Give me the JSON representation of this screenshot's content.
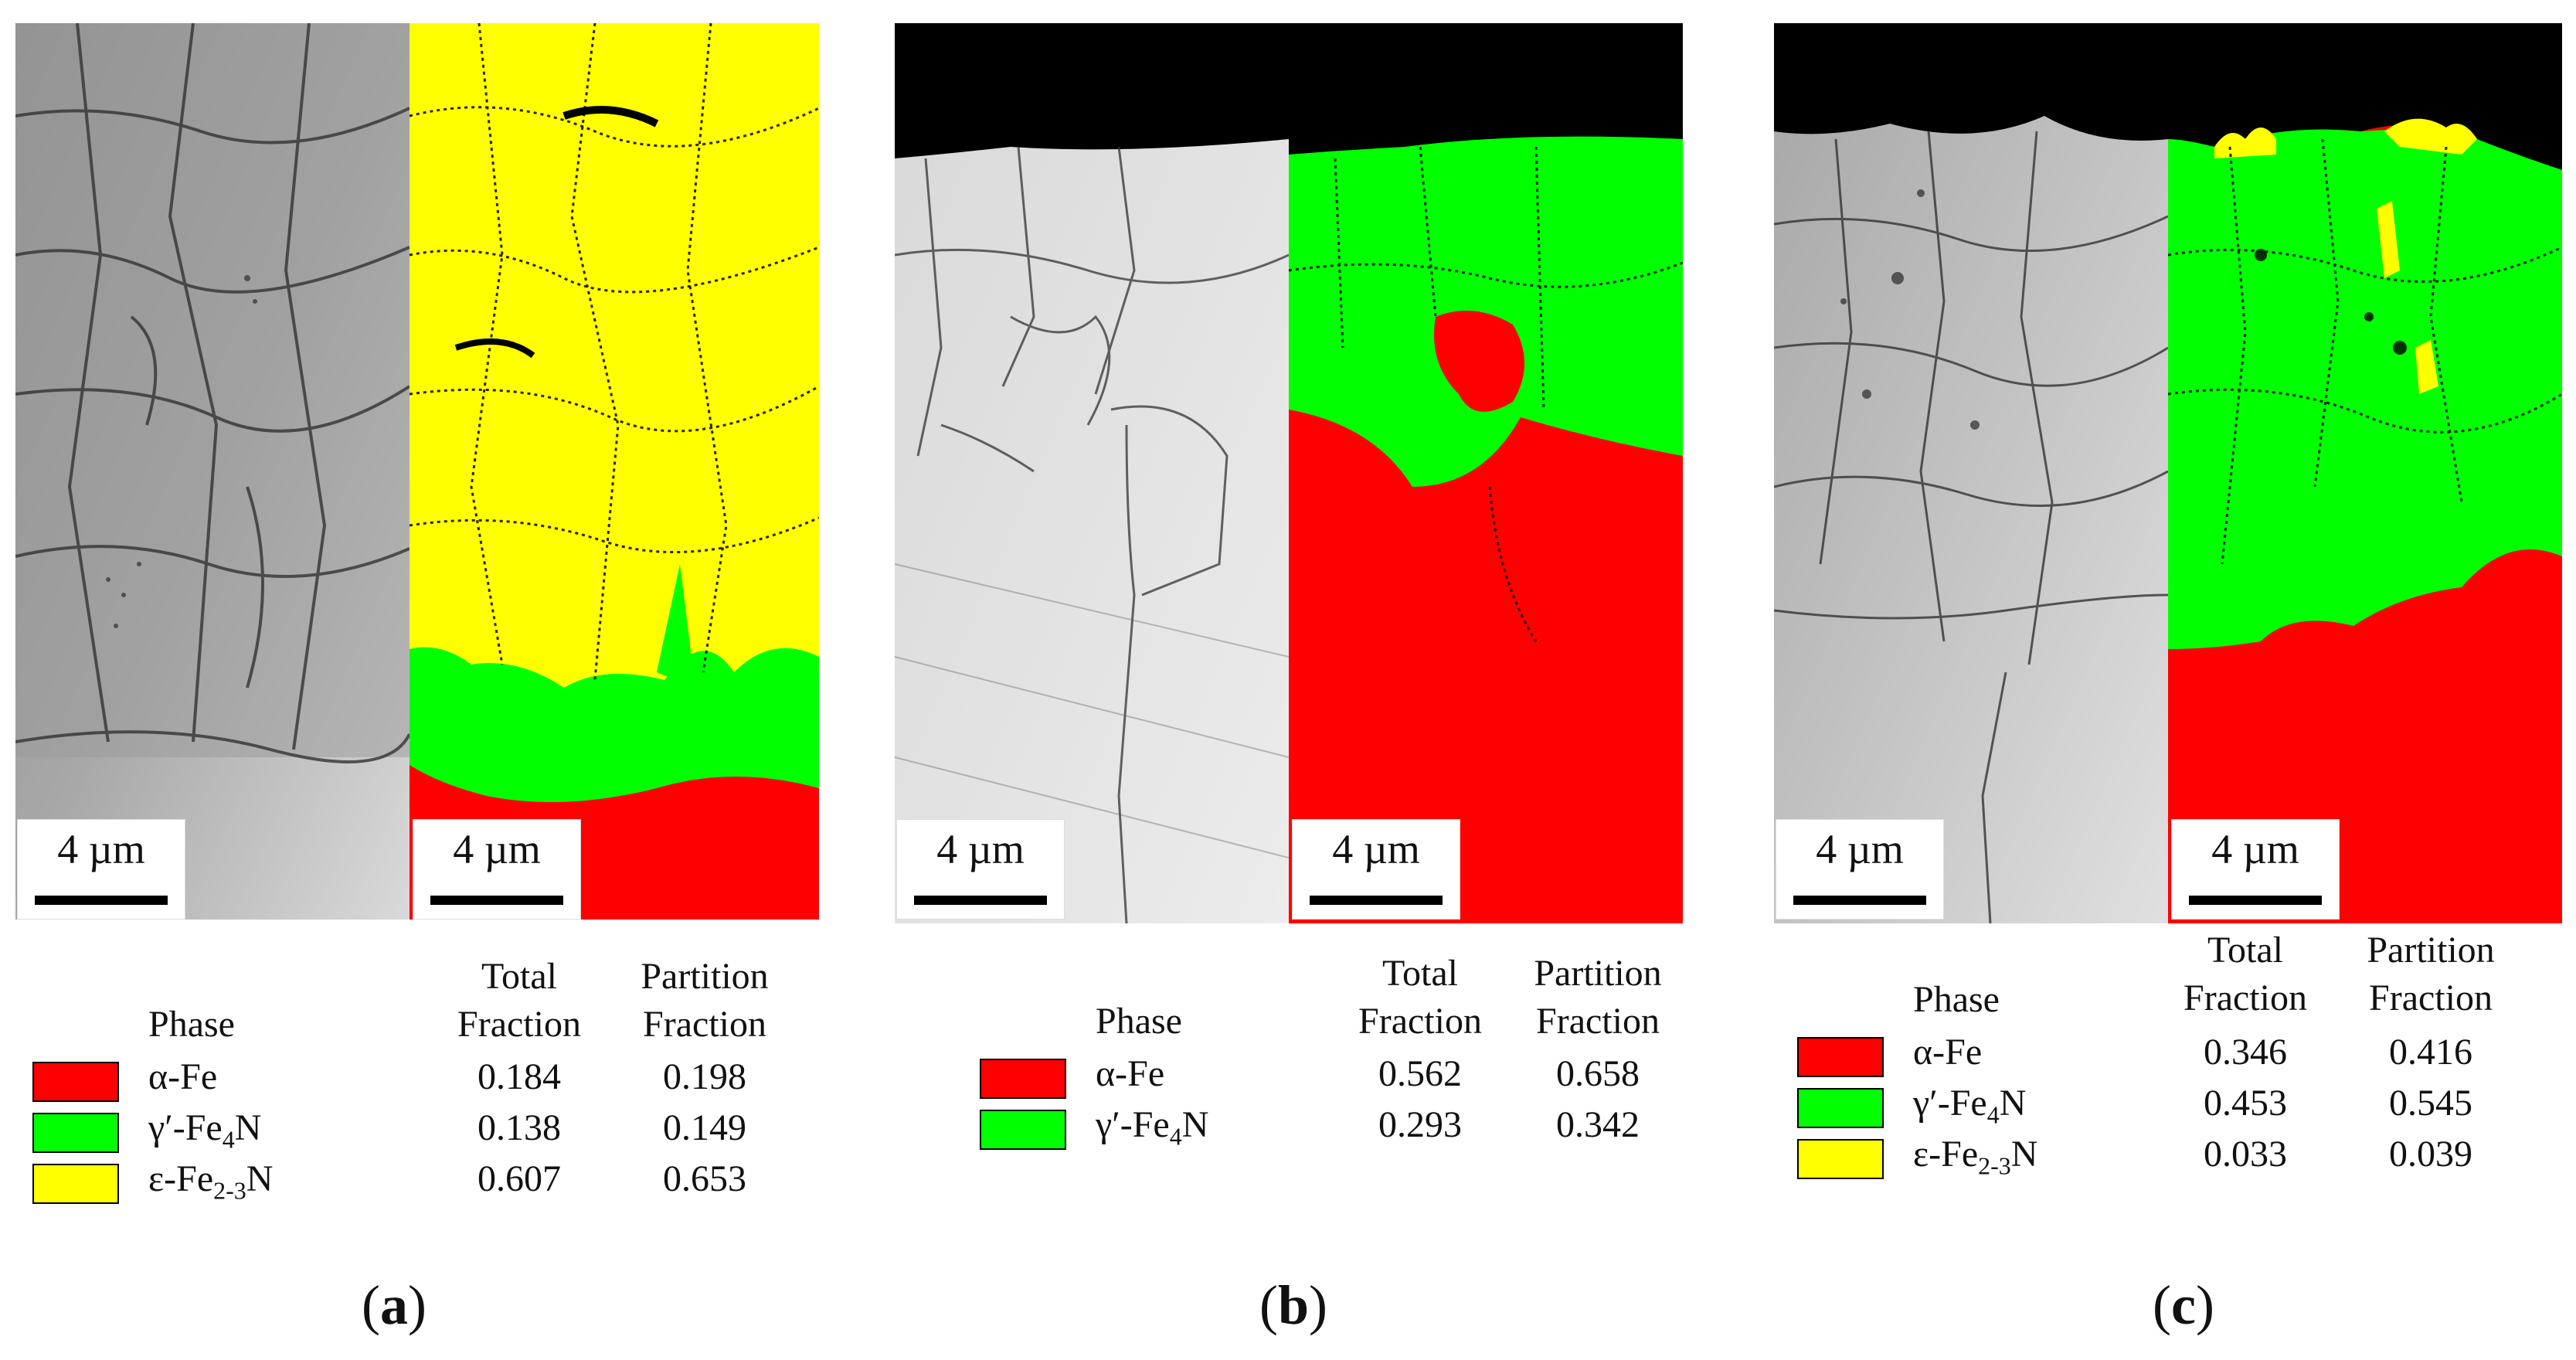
{
  "scale_bar_text": "4 µm",
  "legend_headers": {
    "phase": "Phase",
    "total": [
      "Total",
      "Fraction"
    ],
    "partition": [
      "Partition",
      "Fraction"
    ]
  },
  "colors": {
    "alpha": "#ff0000",
    "gamma": "#00ff00",
    "epsilon": "#ffff00",
    "surface": "#000000"
  },
  "panels": [
    {
      "label_open": "(",
      "label_letter": "a",
      "label_close": ")",
      "rows": [
        {
          "phase": "α-Fe",
          "phase_sub": "",
          "phase_tail": "",
          "color": "#ff0000",
          "total": "0.184",
          "partition": "0.198"
        },
        {
          "phase": "γ′-Fe",
          "phase_sub": "4",
          "phase_tail": "N",
          "color": "#00ff00",
          "total": "0.138",
          "partition": "0.149"
        },
        {
          "phase": "ε-Fe",
          "phase_sub": "2-3",
          "phase_tail": "N",
          "color": "#ffff00",
          "total": "0.607",
          "partition": "0.653"
        }
      ]
    },
    {
      "label_open": "(",
      "label_letter": "b",
      "label_close": ")",
      "rows": [
        {
          "phase": "α-Fe",
          "phase_sub": "",
          "phase_tail": "",
          "color": "#ff0000",
          "total": "0.562",
          "partition": "0.658"
        },
        {
          "phase": "γ′-Fe",
          "phase_sub": "4",
          "phase_tail": "N",
          "color": "#00ff00",
          "total": "0.293",
          "partition": "0.342"
        }
      ]
    },
    {
      "label_open": "(",
      "label_letter": "c",
      "label_close": ")",
      "rows": [
        {
          "phase": "α-Fe",
          "phase_sub": "",
          "phase_tail": "",
          "color": "#ff0000",
          "total": "0.346",
          "partition": "0.416"
        },
        {
          "phase": "γ′-Fe",
          "phase_sub": "4",
          "phase_tail": "N",
          "color": "#00ff00",
          "total": "0.453",
          "partition": "0.545"
        },
        {
          "phase": "ε-Fe",
          "phase_sub": "2-3",
          "phase_tail": "N",
          "color": "#ffff00",
          "total": "0.033",
          "partition": "0.039"
        }
      ]
    }
  ]
}
